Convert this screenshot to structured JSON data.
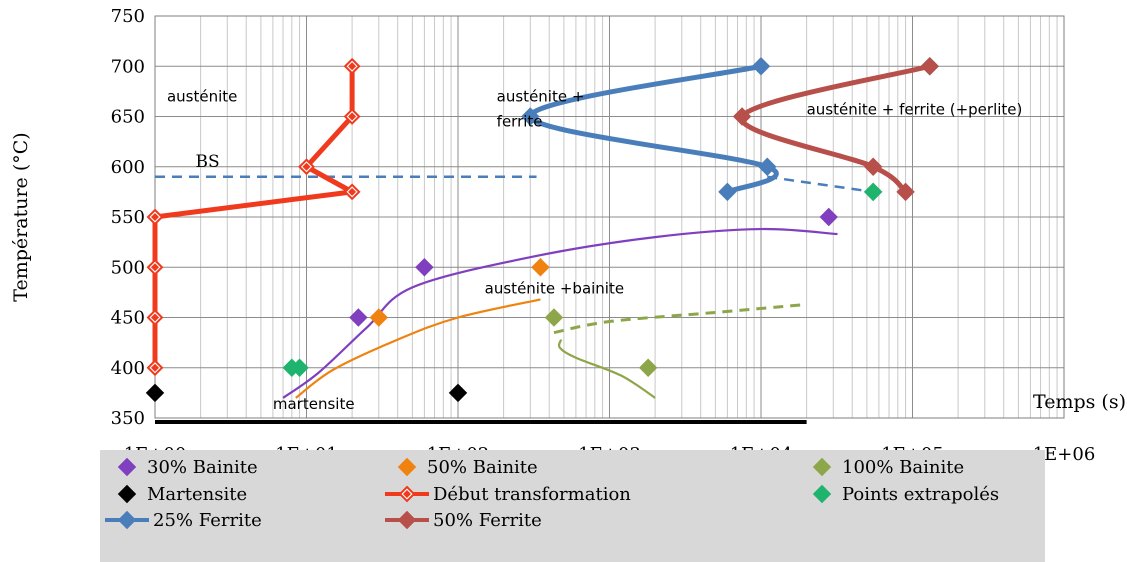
{
  "chart_data": {
    "type": "scatter",
    "x_scale": "log",
    "xlabel": "Temps (s)",
    "ylabel": "Température (°C)",
    "xlim": [
      1,
      1000000
    ],
    "ylim": [
      350,
      750
    ],
    "x_ticks": [
      "1E+00",
      "1E+01",
      "1E+02",
      "1E+03",
      "1E+04",
      "1E+05",
      "1E+06"
    ],
    "y_ticks": [
      "350",
      "400",
      "450",
      "500",
      "550",
      "600",
      "650",
      "700",
      "750"
    ],
    "grid": true,
    "legend_position": "bottom",
    "series": [
      {
        "name": "30% Bainite",
        "style": "markers",
        "color": "#7f3fbf",
        "points": [
          [
            22,
            450
          ],
          [
            60,
            500
          ],
          [
            28000,
            550
          ]
        ]
      },
      {
        "name": "50% Bainite",
        "style": "markers",
        "color": "#f0820f",
        "points": [
          [
            30,
            450
          ],
          [
            350,
            500
          ]
        ]
      },
      {
        "name": "100% Bainite",
        "style": "markers",
        "color": "#8ea64a",
        "points": [
          [
            430,
            450
          ],
          [
            1800,
            400
          ],
          [
            55000,
            575
          ]
        ]
      },
      {
        "name": "Martensite",
        "style": "markers",
        "color": "#000000",
        "points": [
          [
            1,
            375
          ],
          [
            100,
            375
          ]
        ]
      },
      {
        "name": "Début transformation",
        "style": "line-markers",
        "color": "#f03a1e",
        "points": [
          [
            20,
            700
          ],
          [
            20,
            650
          ],
          [
            10,
            600
          ],
          [
            20,
            575
          ],
          [
            1,
            550
          ],
          [
            1,
            500
          ],
          [
            1,
            450
          ],
          [
            1,
            400
          ]
        ]
      },
      {
        "name": "Points extrapolés",
        "style": "markers",
        "color": "#1fb46e",
        "points": [
          [
            8,
            400
          ],
          [
            9,
            400
          ],
          [
            55000,
            575
          ],
          [
            130000,
            700
          ]
        ]
      },
      {
        "name": "25% Ferrite",
        "style": "line-markers",
        "color": "#4a7eba",
        "points": [
          [
            10000,
            700
          ],
          [
            300,
            650
          ],
          [
            11000,
            600
          ],
          [
            6000,
            575
          ]
        ]
      },
      {
        "name": "50% Ferrite",
        "style": "line-markers",
        "color": "#b7504a",
        "points": [
          [
            130000,
            700
          ],
          [
            7500,
            650
          ],
          [
            55000,
            600
          ],
          [
            90000,
            575
          ]
        ]
      }
    ],
    "guides": [
      {
        "role": "bs-line",
        "style": "dashed",
        "color": "#4a7eba",
        "points": [
          [
            1,
            590
          ],
          [
            330,
            590
          ]
        ]
      },
      {
        "role": "ferrite-dashed",
        "style": "dashed",
        "color": "#4a7eba",
        "points": [
          [
            11000,
            590
          ],
          [
            55000,
            575
          ]
        ]
      },
      {
        "role": "bainite-100-dashed",
        "style": "dashed",
        "color": "#8ea64a",
        "points": [
          [
            430,
            435
          ],
          [
            1000,
            446
          ],
          [
            5000,
            455
          ],
          [
            20000,
            463
          ]
        ]
      },
      {
        "role": "bainite-100-curve",
        "style": "solid",
        "color": "#8ea64a",
        "points": [
          [
            480,
            428
          ],
          [
            470,
            420
          ],
          [
            600,
            410
          ],
          [
            1200,
            392
          ],
          [
            2000,
            370
          ]
        ]
      },
      {
        "role": "bainite-30-curve",
        "style": "solid",
        "color": "#7f3fbf",
        "points": [
          [
            7,
            370
          ],
          [
            12,
            395
          ],
          [
            25,
            440
          ],
          [
            50,
            480
          ],
          [
            300,
            510
          ],
          [
            2000,
            530
          ],
          [
            10000,
            538
          ],
          [
            32000,
            533
          ]
        ]
      },
      {
        "role": "bainite-50-curve",
        "style": "solid",
        "color": "#f0820f",
        "points": [
          [
            8.5,
            370
          ],
          [
            15,
            398
          ],
          [
            40,
            428
          ],
          [
            100,
            450
          ],
          [
            350,
            468
          ]
        ]
      },
      {
        "role": "baseline-bar",
        "style": "solid",
        "color": "#000000",
        "points": [
          [
            1,
            346
          ],
          [
            20000,
            346
          ]
        ]
      }
    ],
    "annotations": [
      {
        "text": "austénite",
        "at": [
          1.2,
          665
        ]
      },
      {
        "text": "austénite +",
        "at": [
          180,
          665
        ]
      },
      {
        "text": "ferrite",
        "at": [
          180,
          640
        ]
      },
      {
        "text": "austénite + ferrite (+perlite)",
        "at": [
          20000,
          652
        ]
      },
      {
        "text": "BS",
        "at": [
          1.85,
          600
        ]
      },
      {
        "text": "austénite +bainite",
        "at": [
          150,
          474
        ]
      },
      {
        "text": "martensite",
        "at": [
          6,
          359
        ]
      }
    ]
  }
}
